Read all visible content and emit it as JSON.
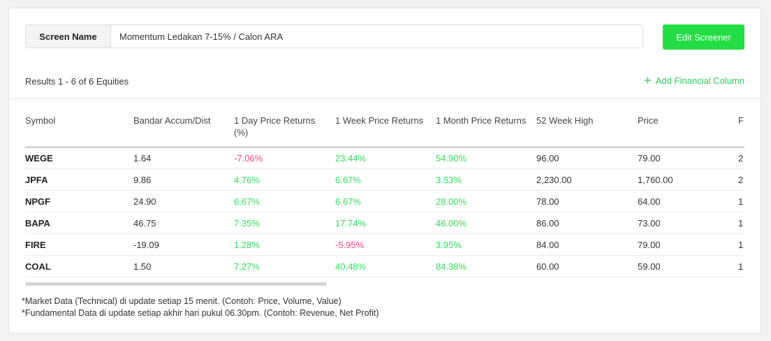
{
  "screen": {
    "label": "Screen Name",
    "value": "Momentum Ledakan 7-15% / Calon ARA",
    "edit_label": "Edit Screener"
  },
  "results_text": "Results 1 - 6 of 6 Equities",
  "add_column_label": "Add Financial Column",
  "table": {
    "headers": [
      "Symbol",
      "Bandar Accum/Dist",
      "1 Day Price Returns (%)",
      "1 Week Price Returns",
      "1 Month Price Returns",
      "52 Week High",
      "Price",
      "F"
    ],
    "rows": [
      [
        "WEGE",
        "1.64",
        "-7.06%",
        "23.44%",
        "54.90%",
        "96.00",
        "79.00",
        "2"
      ],
      [
        "JPFA",
        "9.86",
        "4.76%",
        "6.67%",
        "3.53%",
        "2,230.00",
        "1,760.00",
        "2"
      ],
      [
        "NPGF",
        "24.90",
        "6.67%",
        "6.67%",
        "28.00%",
        "78.00",
        "64.00",
        "1"
      ],
      [
        "BAPA",
        "46.75",
        "7.35%",
        "17.74%",
        "46.00%",
        "86.00",
        "73.00",
        "1"
      ],
      [
        "FIRE",
        "-19.09",
        "1.28%",
        "-5.95%",
        "3.95%",
        "84.00",
        "79.00",
        "1"
      ],
      [
        "COAL",
        "1.50",
        "7.27%",
        "40.48%",
        "84.38%",
        "60.00",
        "59.00",
        "1"
      ]
    ]
  },
  "notes": [
    "*Market Data (Technical) di update setiap 15 menit. (Contoh: Price, Volume, Value)",
    "*Fundamental Data di update setiap akhir hari pukul 06.30pm. (Contoh: Revenue, Net Profit)"
  ],
  "colors": {
    "accent": "#22dd44",
    "positive": "#33dd55",
    "negative": "#f0428f"
  },
  "icons": {
    "add": "plus-icon"
  }
}
